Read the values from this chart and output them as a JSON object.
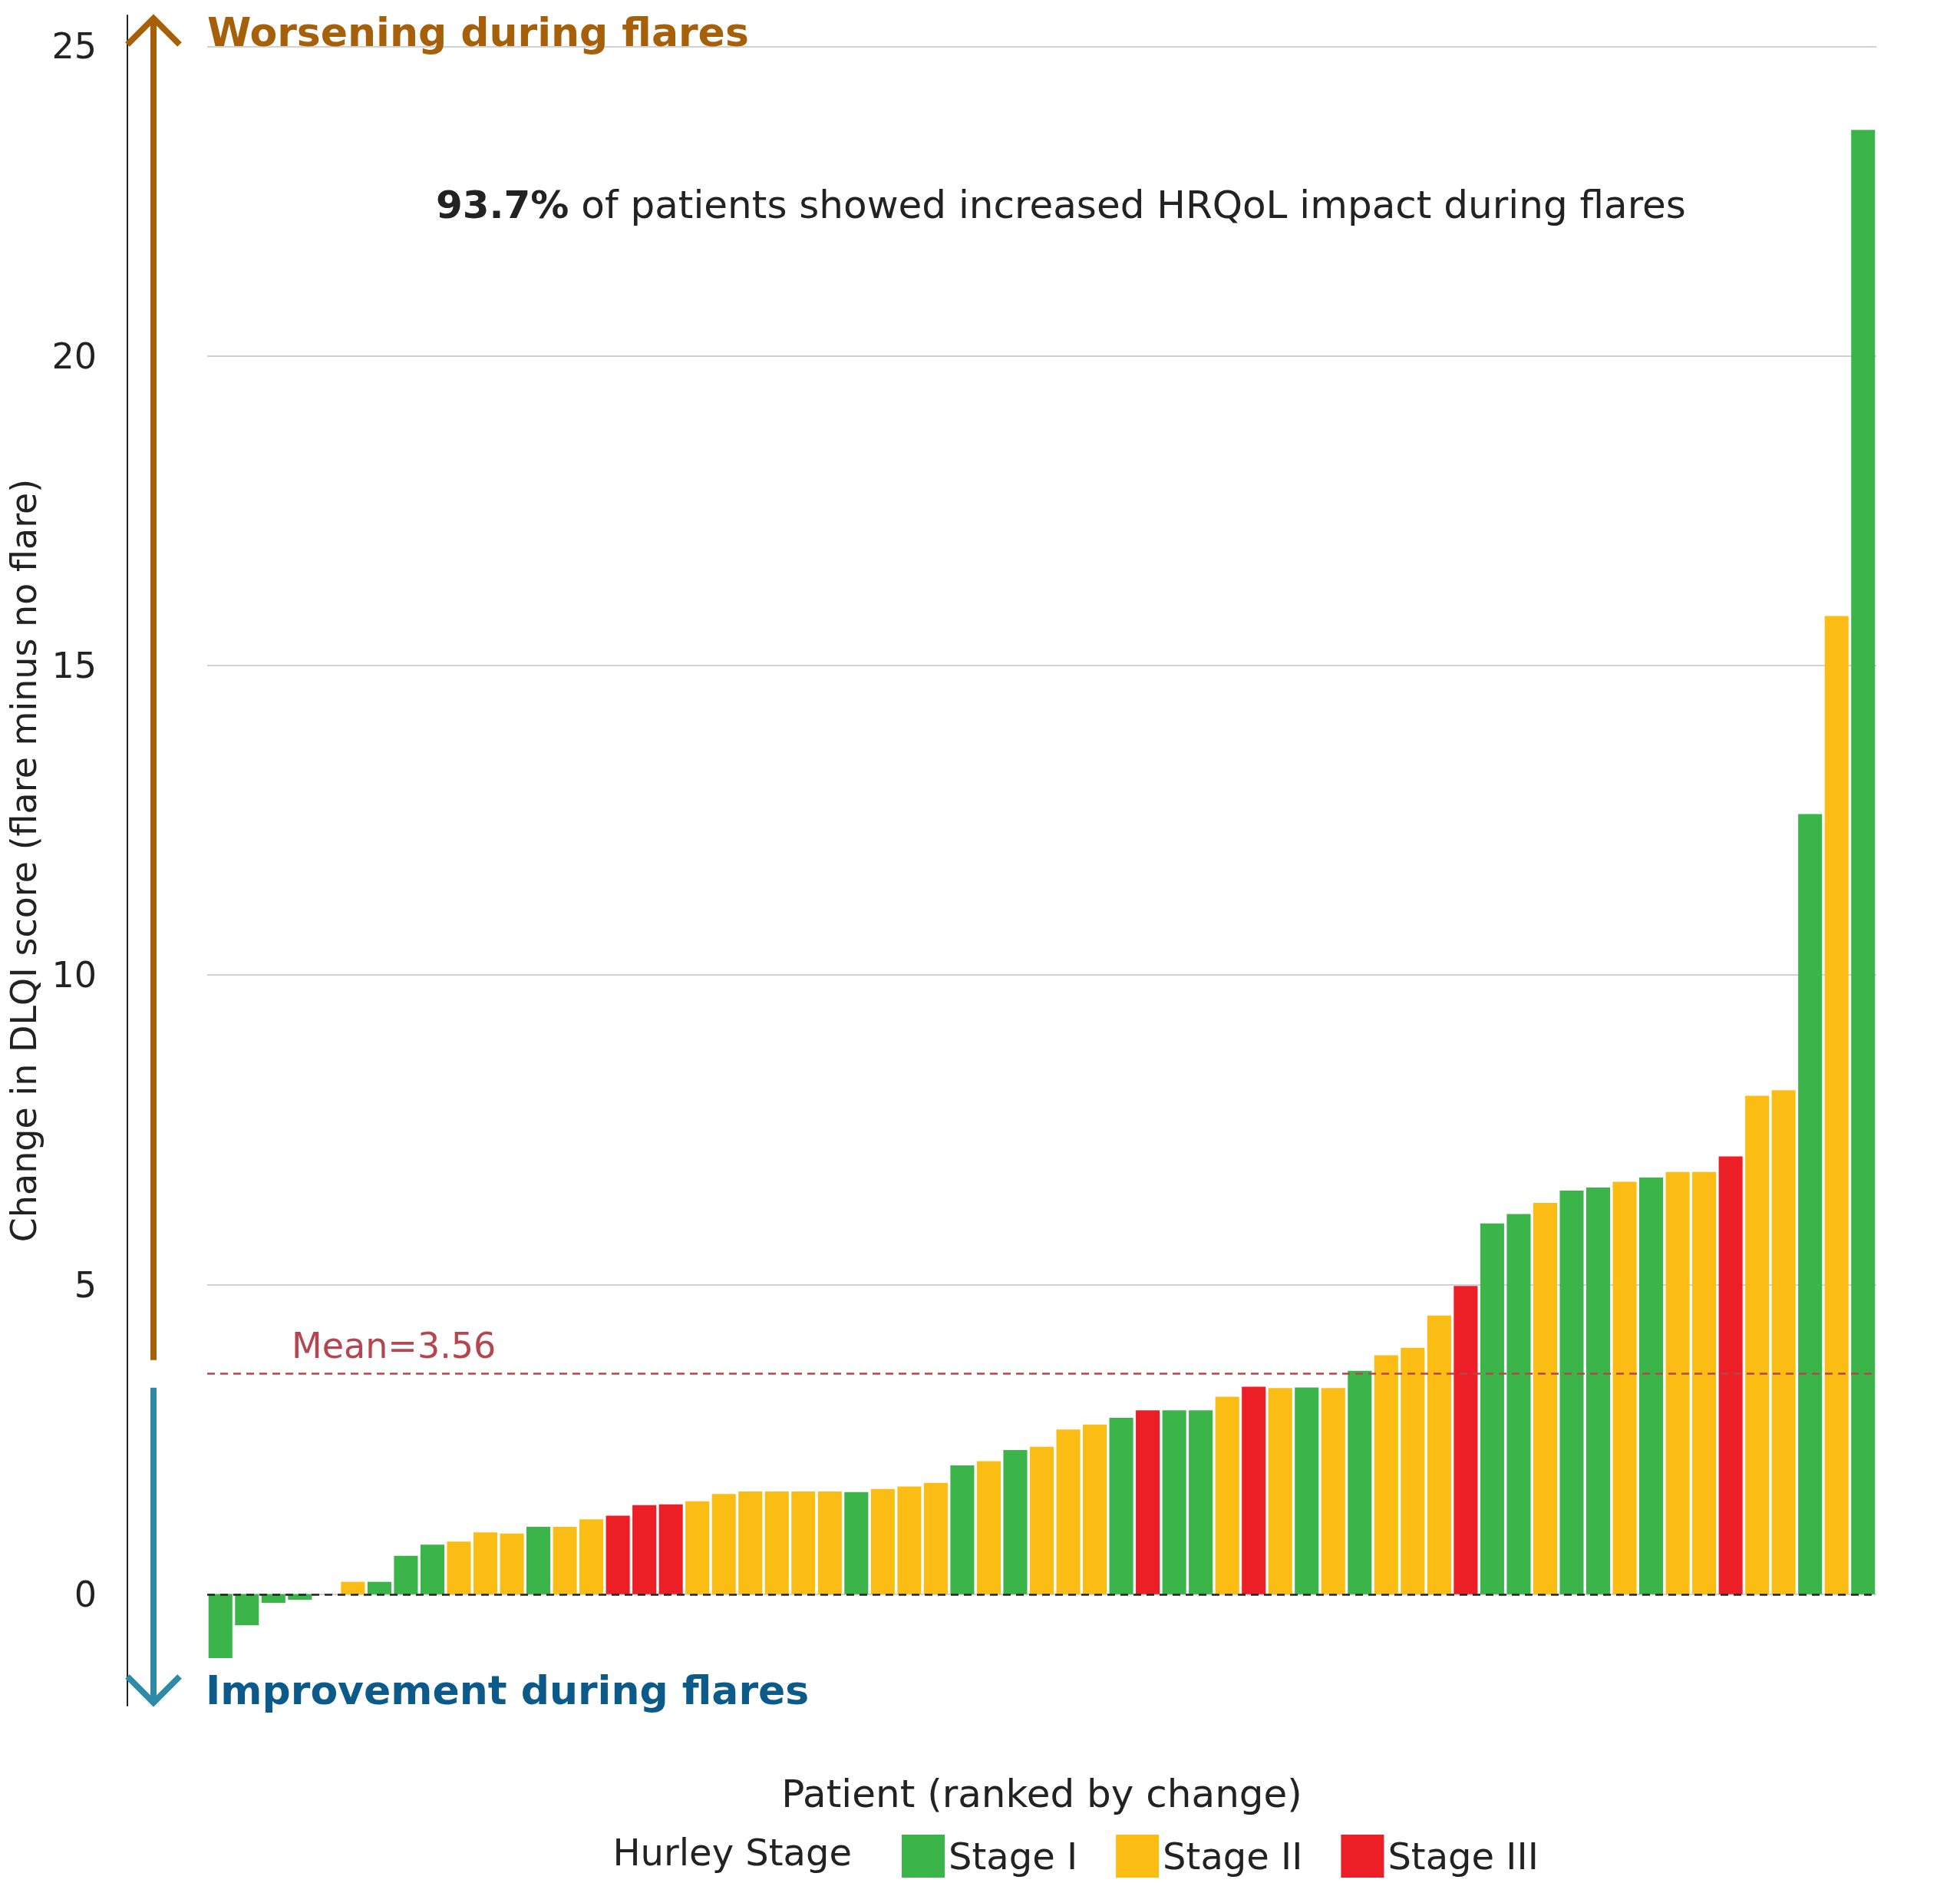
{
  "chart_data": {
    "type": "bar",
    "annotations": [
      "Worsening during flares",
      "Improvement during flares",
      "93.7% of patients showed increased HRQoL impact during flares"
    ],
    "xlabel": "Patient (ranked by change)",
    "ylabel": "Change in DLQI score (flare minus no flare)",
    "legend_title": "Hurley Stage",
    "categories": [
      null,
      null,
      null,
      null,
      null,
      null,
      null,
      null,
      null,
      null,
      null,
      null,
      null,
      null,
      null,
      null,
      null,
      null,
      null,
      null,
      null,
      null,
      null,
      null,
      null,
      null,
      null,
      null,
      null,
      null,
      null,
      null,
      null,
      null,
      null,
      null,
      null,
      null,
      null,
      null,
      null,
      null,
      null,
      null,
      null,
      null,
      null,
      null,
      null,
      null,
      null,
      null,
      null,
      null,
      null,
      null,
      null,
      null,
      null,
      null,
      null,
      null,
      null
    ],
    "series": [
      {
        "name": "Stage I",
        "color": "#3bb44a",
        "values": [
          -1.03,
          -0.5,
          -0.14,
          -0.09,
          null,
          null,
          0.2,
          0.62,
          0.8,
          null,
          null,
          null,
          1.09,
          null,
          null,
          null,
          null,
          null,
          null,
          null,
          null,
          null,
          null,
          null,
          1.65,
          null,
          null,
          null,
          2.08,
          null,
          2.33,
          null,
          null,
          null,
          2.85,
          null,
          2.97,
          2.97,
          null,
          null,
          null,
          3.34,
          null,
          3.61,
          null,
          null,
          null,
          null,
          5.99,
          6.14,
          null,
          6.52,
          6.57,
          null,
          6.73,
          null,
          null,
          null,
          null,
          null,
          12.6,
          null,
          23.65
        ]
      },
      {
        "name": "Stage II",
        "color": "#fbbd13",
        "values": [
          null,
          null,
          null,
          null,
          null,
          0.2,
          null,
          null,
          null,
          0.85,
          1.0,
          0.98,
          null,
          1.09,
          1.21,
          null,
          null,
          null,
          1.5,
          1.62,
          1.66,
          1.66,
          1.66,
          1.66,
          null,
          1.7,
          1.74,
          1.8,
          null,
          2.15,
          null,
          2.38,
          2.66,
          2.74,
          null,
          null,
          null,
          null,
          3.19,
          null,
          3.33,
          null,
          3.33,
          null,
          3.86,
          3.98,
          4.5,
          null,
          null,
          null,
          6.32,
          null,
          null,
          6.66,
          null,
          6.82,
          6.82,
          null,
          8.05,
          8.14,
          null,
          15.8,
          null
        ]
      },
      {
        "name": "Stage III",
        "color": "#ec1f27",
        "values": [
          null,
          null,
          null,
          null,
          null,
          null,
          null,
          null,
          null,
          null,
          null,
          null,
          null,
          null,
          null,
          1.27,
          1.44,
          1.45,
          null,
          null,
          null,
          null,
          null,
          null,
          null,
          null,
          null,
          null,
          null,
          null,
          null,
          null,
          null,
          null,
          null,
          2.97,
          null,
          null,
          null,
          3.35,
          null,
          null,
          null,
          null,
          null,
          null,
          null,
          4.98,
          null,
          null,
          null,
          null,
          null,
          null,
          null,
          null,
          null,
          7.07,
          null,
          null,
          null,
          null,
          null
        ]
      }
    ],
    "ylim": [
      -1.8,
      25.5
    ],
    "yticks": [
      0,
      5,
      10,
      15,
      20,
      25
    ],
    "grid": "y",
    "legend": "bottom",
    "ref_lines": [
      {
        "axis": "y",
        "value": 3.56,
        "label": "Mean=3.56",
        "color": "#b5464f",
        "line_style": "dashed"
      },
      {
        "axis": "y",
        "value": 0,
        "label": null,
        "color": "#222222",
        "line_style": "dashed"
      }
    ]
  }
}
